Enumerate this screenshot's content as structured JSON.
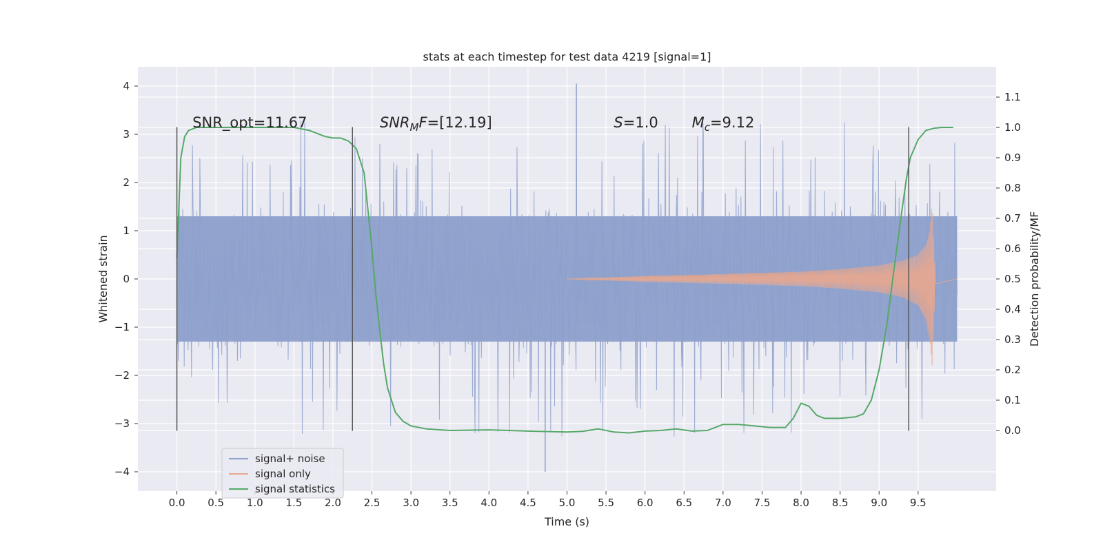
{
  "chart_data": {
    "type": "line",
    "title": "stats at each timestep for test data 4219 [signal=1]",
    "xlabel": "Time (s)",
    "ylabel": "Whitened strain",
    "y2label": "Detection probability/MF",
    "xlim": [
      -0.5,
      10.5
    ],
    "ylim": [
      -4.4,
      4.4
    ],
    "y2lim": [
      -0.2,
      1.2
    ],
    "x_ticks": [
      0.0,
      0.5,
      1.0,
      1.5,
      2.0,
      2.5,
      3.0,
      3.5,
      4.0,
      4.5,
      5.0,
      5.5,
      6.0,
      6.5,
      7.0,
      7.5,
      8.0,
      8.5,
      9.0,
      9.5
    ],
    "x_tick_labels": [
      "0.0",
      "0.5",
      "1.0",
      "1.5",
      "2.0",
      "2.5",
      "3.0",
      "3.5",
      "4.0",
      "4.5",
      "5.0",
      "5.5",
      "6.0",
      "6.5",
      "7.0",
      "7.5",
      "8.0",
      "8.5",
      "9.0",
      "9.5"
    ],
    "y_ticks": [
      -4,
      -3,
      -2,
      -1,
      0,
      1,
      2,
      3,
      4
    ],
    "y_tick_labels": [
      "−4",
      "−3",
      "−2",
      "−1",
      "0",
      "1",
      "2",
      "3",
      "4"
    ],
    "y2_ticks": [
      0.0,
      0.1,
      0.2,
      0.3,
      0.4,
      0.5,
      0.6,
      0.7,
      0.8,
      0.9,
      1.0,
      1.1
    ],
    "y2_tick_labels": [
      "0.0",
      "0.1",
      "0.2",
      "0.3",
      "0.4",
      "0.5",
      "0.6",
      "0.7",
      "0.8",
      "0.9",
      "1.0",
      "1.1"
    ],
    "grid": true,
    "legend_position": "lower-left",
    "annotations": [
      {
        "x": 0.2,
        "y": 3.2,
        "parts": [
          {
            "text": "SNR_opt=11.67"
          }
        ]
      },
      {
        "x": 2.6,
        "y": 3.2,
        "parts": [
          {
            "text": "SNR",
            "italic": true
          },
          {
            "text": "M",
            "italic": true,
            "sub": true
          },
          {
            "text": "F",
            "italic": true
          },
          {
            "text": "=[12.19]"
          }
        ]
      },
      {
        "x": 5.6,
        "y": 3.2,
        "parts": [
          {
            "text": "S",
            "italic": true
          },
          {
            "text": "=1.0"
          }
        ]
      },
      {
        "x": 6.6,
        "y": 3.2,
        "parts": [
          {
            "text": "M",
            "italic": true
          },
          {
            "text": "c",
            "italic": true,
            "sub": true
          },
          {
            "text": "=9.12"
          }
        ]
      }
    ],
    "vlines": [
      {
        "x": 0.0,
        "y_range": [
          -3.15,
          3.15
        ]
      },
      {
        "x": 2.25,
        "y_range": [
          -3.15,
          3.15
        ]
      },
      {
        "x": 9.38,
        "y_range": [
          -3.15,
          3.15
        ]
      }
    ],
    "series": [
      {
        "name": "signal+ noise",
        "axis": "left",
        "color": "#8da0cb",
        "kind": "noise-band",
        "x_range": [
          0.0,
          10.0
        ],
        "typical_amplitude": 1.3,
        "peak_max": 4.05,
        "peak_min": -4.0
      },
      {
        "name": "signal only",
        "axis": "left",
        "color": "#e8a78e",
        "kind": "chirp-envelope",
        "x": [
          5.0,
          6.0,
          7.0,
          8.0,
          8.5,
          9.0,
          9.3,
          9.5,
          9.6,
          9.65,
          9.68,
          9.72,
          10.0
        ],
        "envelope": [
          0.0,
          0.06,
          0.1,
          0.15,
          0.2,
          0.28,
          0.38,
          0.5,
          0.7,
          1.0,
          1.6,
          0.1,
          0.0
        ],
        "envelope_low": [
          0.0,
          -0.06,
          -0.1,
          -0.15,
          -0.2,
          -0.28,
          -0.38,
          -0.55,
          -0.85,
          -1.3,
          -1.8,
          -0.1,
          0.0
        ]
      },
      {
        "name": "signal statistics",
        "axis": "right",
        "color": "#55a868",
        "kind": "line",
        "x": [
          0.0,
          0.05,
          0.1,
          0.15,
          0.25,
          0.5,
          1.0,
          1.5,
          1.7,
          1.9,
          2.0,
          2.1,
          2.2,
          2.3,
          2.4,
          2.5,
          2.55,
          2.6,
          2.65,
          2.7,
          2.8,
          2.9,
          3.0,
          3.2,
          3.5,
          4.0,
          4.5,
          5.0,
          5.2,
          5.4,
          5.6,
          5.8,
          6.0,
          6.2,
          6.4,
          6.6,
          6.8,
          7.0,
          7.2,
          7.4,
          7.6,
          7.8,
          7.9,
          8.0,
          8.1,
          8.2,
          8.3,
          8.5,
          8.7,
          8.8,
          8.9,
          9.0,
          9.1,
          9.2,
          9.3,
          9.35,
          9.4,
          9.5,
          9.6,
          9.7,
          9.8,
          9.9,
          9.95
        ],
        "y": [
          0.57,
          0.9,
          0.97,
          0.99,
          1.0,
          1.0,
          1.0,
          1.0,
          0.99,
          0.97,
          0.965,
          0.965,
          0.955,
          0.93,
          0.85,
          0.6,
          0.45,
          0.33,
          0.22,
          0.14,
          0.06,
          0.03,
          0.015,
          0.005,
          0.0,
          0.002,
          -0.002,
          -0.005,
          -0.003,
          0.005,
          -0.005,
          -0.008,
          -0.002,
          0.0,
          0.005,
          -0.002,
          0.0,
          0.02,
          0.02,
          0.015,
          0.01,
          0.01,
          0.04,
          0.09,
          0.08,
          0.05,
          0.04,
          0.04,
          0.045,
          0.055,
          0.1,
          0.2,
          0.35,
          0.55,
          0.74,
          0.83,
          0.9,
          0.96,
          0.99,
          0.997,
          1.0,
          1.0,
          1.0
        ]
      }
    ]
  }
}
